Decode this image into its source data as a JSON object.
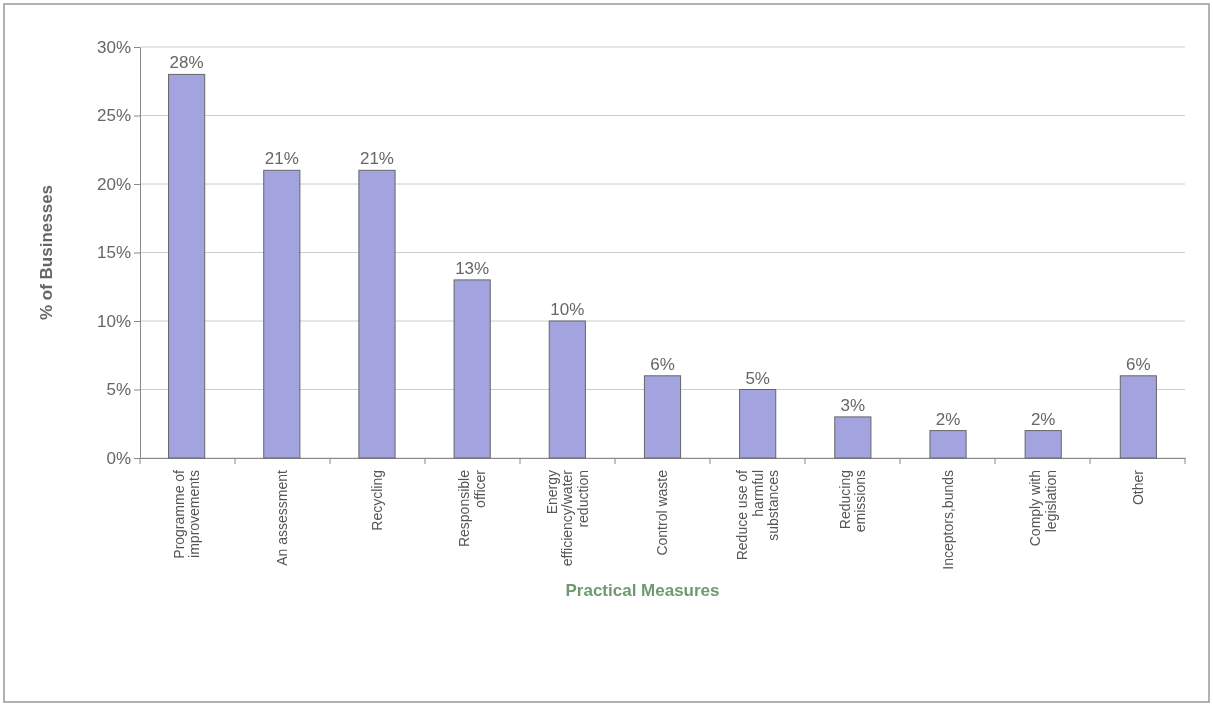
{
  "chart_data": {
    "type": "bar",
    "xlabel": "Practical Measures",
    "ylabel": "% of Businesses",
    "categories": [
      "Programme of improvements",
      "An assessment",
      "Recycling",
      "Responsible officer",
      "Energy efficiency/water reduction",
      "Control waste",
      "Reduce use of harmful substances",
      "Reducing emissions",
      "Inceptors,bunds",
      "Comply with legislation",
      "Other"
    ],
    "values": [
      28,
      21,
      21,
      13,
      10,
      6,
      5,
      3,
      2,
      2,
      6
    ],
    "value_labels": [
      "28%",
      "21%",
      "21%",
      "13%",
      "10%",
      "6%",
      "5%",
      "3%",
      "2%",
      "2%",
      "6%"
    ],
    "color": "#a3a3e0",
    "ylim": [
      0,
      30
    ],
    "yticks": [
      {
        "value": 0,
        "label": "0%"
      },
      {
        "value": 5,
        "label": "5%"
      },
      {
        "value": 10,
        "label": "10%"
      },
      {
        "value": 15,
        "label": "15%"
      },
      {
        "value": 20,
        "label": "20%"
      },
      {
        "value": 25,
        "label": "25%"
      },
      {
        "value": 30,
        "label": "30%"
      }
    ],
    "grid": "y"
  }
}
